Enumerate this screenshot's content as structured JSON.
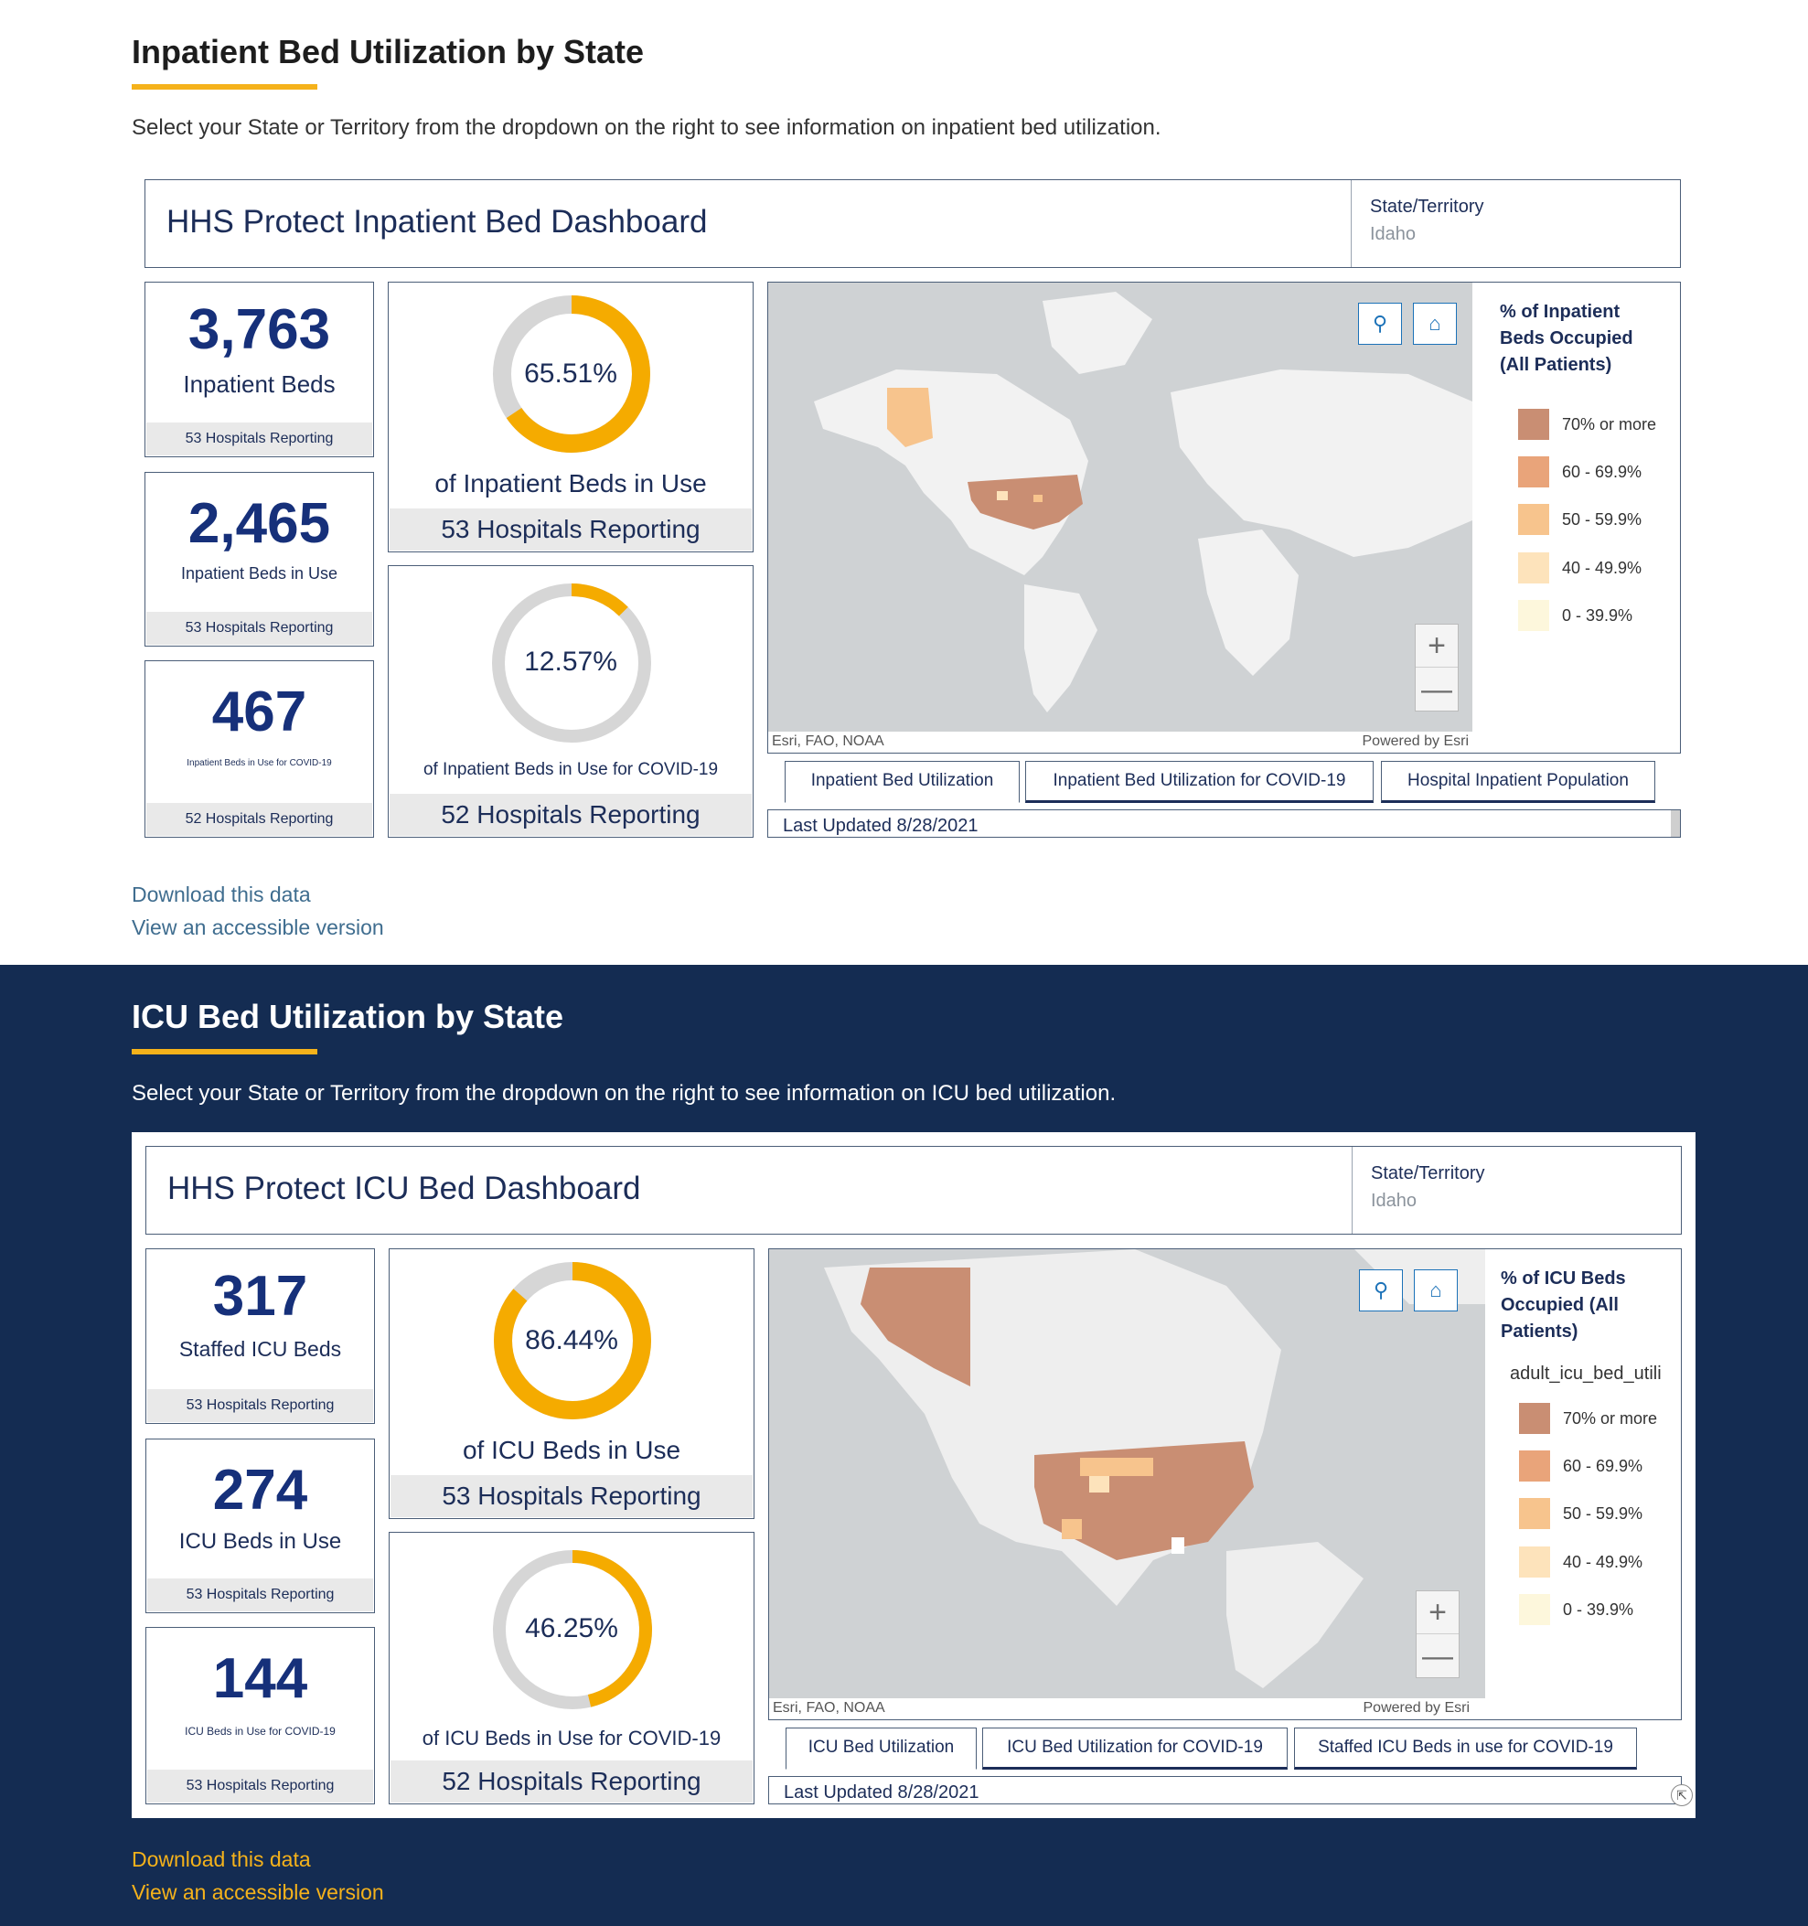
{
  "inpatient": {
    "title": "Inpatient Bed Utilization by State",
    "description": "Select your State or Territory from the dropdown on the right to see information on inpatient bed utilization.",
    "dashboard_title": "HHS Protect Inpatient Bed Dashboard",
    "state_label": "State/Territory",
    "state_value": "Idaho",
    "stats": [
      {
        "value": "3,763",
        "label": "Inpatient Beds",
        "footer": "53 Hospitals Reporting"
      },
      {
        "value": "2,465",
        "label": "Inpatient Beds in Use",
        "footer": "53 Hospitals Reporting"
      },
      {
        "value": "467",
        "label": "Inpatient Beds in Use for COVID-19",
        "footer": "52 Hospitals Reporting"
      }
    ],
    "donuts": [
      {
        "percent_text": "65.51%",
        "percent": 65.51,
        "label": "of Inpatient Beds in Use",
        "footer": "53 Hospitals Reporting"
      },
      {
        "percent_text": "12.57%",
        "percent": 12.57,
        "label": "of Inpatient Beds in Use for COVID-19",
        "footer": "52 Hospitals Reporting"
      }
    ],
    "map": {
      "attribution_left": "Esri, FAO, NOAA",
      "attribution_right": "Powered by Esri",
      "legend_title": "% of Inpatient Beds Occupied (All Patients)",
      "legend_field": ""
    },
    "tabs": [
      "Inpatient Bed Utilization",
      "Inpatient Bed Utilization for COVID-19",
      "Hospital Inpatient Population"
    ],
    "last_updated": "Last Updated 8/28/2021",
    "links": {
      "download": "Download this data",
      "accessible": "View an accessible version"
    }
  },
  "icu": {
    "title": "ICU Bed Utilization by State",
    "description": "Select your State or Territory from the dropdown on the right to see information on ICU bed utilization.",
    "dashboard_title": "HHS Protect ICU Bed Dashboard",
    "state_label": "State/Territory",
    "state_value": "Idaho",
    "stats": [
      {
        "value": "317",
        "label": "Staffed ICU Beds",
        "footer": "53 Hospitals Reporting"
      },
      {
        "value": "274",
        "label": "ICU Beds in Use",
        "footer": "53 Hospitals Reporting"
      },
      {
        "value": "144",
        "label": "ICU Beds in Use for COVID-19",
        "footer": "53 Hospitals Reporting"
      }
    ],
    "donuts": [
      {
        "percent_text": "86.44%",
        "percent": 86.44,
        "label": "of ICU Beds in Use",
        "footer": "53 Hospitals Reporting"
      },
      {
        "percent_text": "46.25%",
        "percent": 46.25,
        "label": "of ICU Beds in Use for COVID-19",
        "footer": "52 Hospitals Reporting"
      }
    ],
    "map": {
      "attribution_left": "Esri, FAO, NOAA",
      "attribution_right": "Powered by Esri",
      "legend_title": "% of ICU Beds Occupied (All Patients)",
      "legend_field": "adult_icu_bed_utili"
    },
    "tabs": [
      "ICU Bed Utilization",
      "ICU Bed Utilization for COVID-19",
      "Staffed ICU Beds in use for COVID-19"
    ],
    "last_updated": "Last Updated 8/28/2021",
    "links": {
      "download": "Download this data",
      "accessible": "View an accessible version"
    }
  },
  "legend": [
    {
      "label": "70% or more",
      "color": "#c98e73"
    },
    {
      "label": "60 - 69.9%",
      "color": "#e9a47a"
    },
    {
      "label": "50 - 59.9%",
      "color": "#f7c48d"
    },
    {
      "label": "40 - 49.9%",
      "color": "#fde3bb"
    },
    {
      "label": "0 - 39.9%",
      "color": "#fdf7dc"
    }
  ],
  "colors": {
    "accent": "#f5b21b",
    "navy": "#142c52",
    "donut_fill": "#f5ab00",
    "donut_track": "#d6d6d6"
  },
  "icons": {
    "search": "search-icon",
    "home": "home-icon",
    "zoom_in": "plus-icon",
    "zoom_out": "minus-icon",
    "expand": "expand-icon"
  }
}
